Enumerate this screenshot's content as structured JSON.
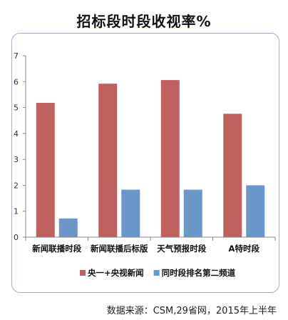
{
  "title": "招标段时段收视率%",
  "source": "数据来源：CSM,29省网，2015年上半年",
  "colors": {
    "series_1": "#c0605f",
    "series_2": "#6a96c8",
    "axis": "#8a8a8a"
  },
  "chart_data": {
    "type": "bar",
    "title": "招标段时段收视率%",
    "categories": [
      "新闻联播时段",
      "新闻联播后标版",
      "天气预报时段",
      "A特时段"
    ],
    "series": [
      {
        "name": "央一+央视新闻",
        "values": [
          5.18,
          5.92,
          6.06,
          4.76
        ]
      },
      {
        "name": "同时段排名第二频道",
        "values": [
          0.72,
          1.83,
          1.83,
          2.0
        ]
      }
    ],
    "y_ticks": [
      "0",
      "1",
      "2",
      "3",
      "4",
      "5",
      "6",
      "7"
    ],
    "ylim": [
      0,
      7
    ],
    "grid": false,
    "legend_position": "bottom-right"
  }
}
